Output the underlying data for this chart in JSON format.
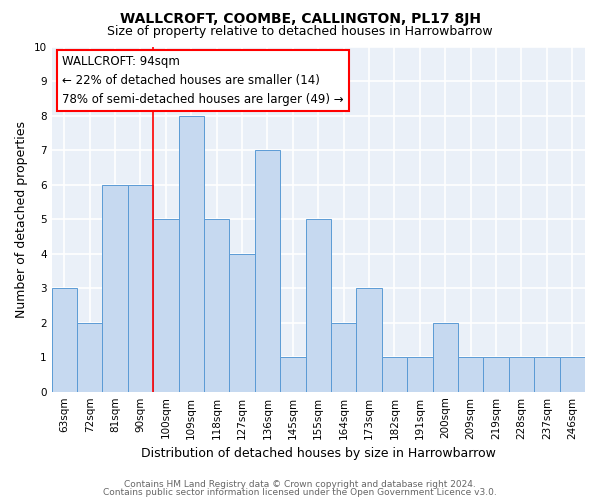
{
  "title": "WALLCROFT, COOMBE, CALLINGTON, PL17 8JH",
  "subtitle": "Size of property relative to detached houses in Harrowbarrow",
  "xlabel": "Distribution of detached houses by size in Harrowbarrow",
  "ylabel": "Number of detached properties",
  "categories": [
    "63sqm",
    "72sqm",
    "81sqm",
    "90sqm",
    "100sqm",
    "109sqm",
    "118sqm",
    "127sqm",
    "136sqm",
    "145sqm",
    "155sqm",
    "164sqm",
    "173sqm",
    "182sqm",
    "191sqm",
    "200sqm",
    "209sqm",
    "219sqm",
    "228sqm",
    "237sqm",
    "246sqm"
  ],
  "values": [
    3,
    2,
    6,
    6,
    5,
    8,
    5,
    4,
    7,
    1,
    5,
    2,
    3,
    1,
    1,
    2,
    1,
    1,
    1,
    1,
    1
  ],
  "bar_color": "#c6d9f0",
  "bar_edge_color": "#5b9bd5",
  "ylim": [
    0,
    10
  ],
  "yticks": [
    0,
    1,
    2,
    3,
    4,
    5,
    6,
    7,
    8,
    9,
    10
  ],
  "red_line_x": 3.5,
  "annotation_text": "WALLCROFT: 94sqm\n← 22% of detached houses are smaller (14)\n78% of semi-detached houses are larger (49) →",
  "footer_line1": "Contains HM Land Registry data © Crown copyright and database right 2024.",
  "footer_line2": "Contains public sector information licensed under the Open Government Licence v3.0.",
  "background_color": "#eaf0f8",
  "grid_color": "#ffffff",
  "title_fontsize": 10,
  "subtitle_fontsize": 9,
  "axis_label_fontsize": 9,
  "tick_fontsize": 7.5,
  "annotation_fontsize": 8.5,
  "footer_fontsize": 6.5
}
